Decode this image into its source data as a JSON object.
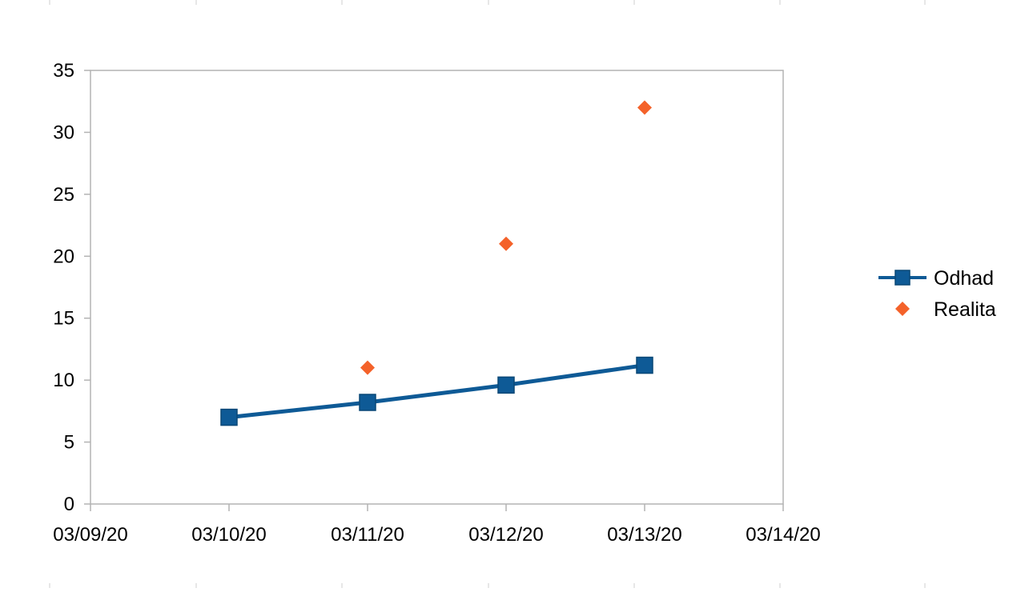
{
  "chart_data": {
    "type": "line",
    "title": "",
    "xlabel": "",
    "ylabel": "",
    "x_ticks": [
      "03/09/20",
      "03/10/20",
      "03/11/20",
      "03/12/20",
      "03/13/20",
      "03/14/20"
    ],
    "xlim": [
      "03/09/20",
      "03/14/20"
    ],
    "ylim": [
      0,
      35
    ],
    "y_ticks": [
      0,
      5,
      10,
      15,
      20,
      25,
      30,
      35
    ],
    "grid": false,
    "legend_position": "right",
    "series": [
      {
        "name": "Odhad",
        "style": "line-with-square-markers",
        "color": "#0e5a96",
        "points": [
          {
            "x": "03/10/20",
            "y": 7.0
          },
          {
            "x": "03/11/20",
            "y": 8.2
          },
          {
            "x": "03/12/20",
            "y": 9.6
          },
          {
            "x": "03/13/20",
            "y": 11.2
          }
        ]
      },
      {
        "name": "Realita",
        "style": "diamond-markers-only",
        "color": "#f4622a",
        "points": [
          {
            "x": "03/11/20",
            "y": 11
          },
          {
            "x": "03/12/20",
            "y": 21
          },
          {
            "x": "03/13/20",
            "y": 32
          }
        ]
      }
    ]
  }
}
